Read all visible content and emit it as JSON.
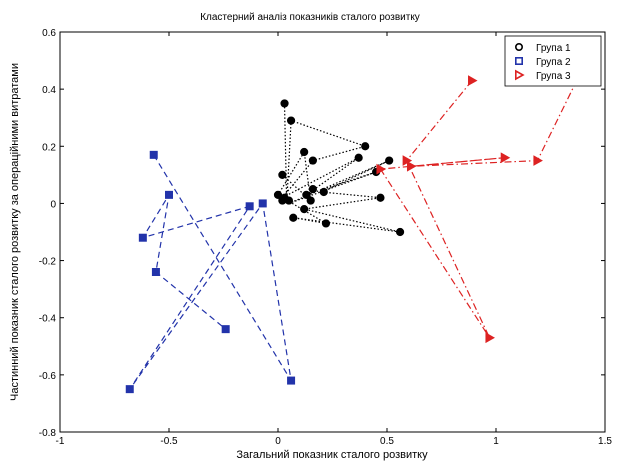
{
  "chart_data": {
    "type": "scatter",
    "title": "Кластерний аналіз показників сталого розвитку",
    "xlabel": "Загальний показник сталого розвитку",
    "ylabel": "Частинний показник сталого розвитку за операційними витратами",
    "xlim": [
      -1,
      1.5
    ],
    "ylim": [
      -0.8,
      0.6
    ],
    "x_ticks": [
      -1,
      -0.5,
      0,
      0.5,
      1,
      1.5
    ],
    "y_ticks": [
      -0.8,
      -0.6,
      -0.4,
      -0.2,
      0,
      0.2,
      0.4,
      0.6
    ],
    "x_tick_labels": [
      "-1",
      "-0.5",
      "0",
      "0.5",
      "1",
      "1.5"
    ],
    "y_tick_labels": [
      "-0.8",
      "-0.6",
      "-0.4",
      "-0.2",
      "0",
      "0.2",
      "0.4",
      "0.6"
    ],
    "grid": false,
    "legend_position": "top-right",
    "series": [
      {
        "name": "Група 1",
        "color": "#000000",
        "marker": "circle",
        "line_style": "dotted",
        "points": [
          [
            0.03,
            0.35
          ],
          [
            0.06,
            0.29
          ],
          [
            0.12,
            0.18
          ],
          [
            0.16,
            0.15
          ],
          [
            0.4,
            0.2
          ],
          [
            0.45,
            0.11
          ],
          [
            0.51,
            0.15
          ],
          [
            0.37,
            0.16
          ],
          [
            0.02,
            0.1
          ],
          [
            0.03,
            0.02
          ],
          [
            0.05,
            0.01
          ],
          [
            0.0,
            0.03
          ],
          [
            0.13,
            0.03
          ],
          [
            0.16,
            0.05
          ],
          [
            0.21,
            0.04
          ],
          [
            0.15,
            0.01
          ],
          [
            0.12,
            -0.02
          ],
          [
            0.07,
            -0.05
          ],
          [
            0.22,
            -0.07
          ],
          [
            0.47,
            0.02
          ],
          [
            0.56,
            -0.1
          ],
          [
            0.02,
            0.01
          ]
        ],
        "path": [
          [
            0.03,
            0.35
          ],
          [
            0.04,
            0.0
          ],
          [
            0.06,
            0.29
          ],
          [
            0.4,
            0.2
          ],
          [
            0.16,
            0.15
          ],
          [
            0.02,
            0.02
          ],
          [
            0.37,
            0.16
          ],
          [
            0.13,
            0.03
          ],
          [
            0.45,
            0.11
          ],
          [
            0.05,
            0.0
          ],
          [
            0.51,
            0.15
          ],
          [
            0.2,
            0.04
          ],
          [
            0.47,
            0.02
          ],
          [
            0.12,
            -0.02
          ],
          [
            0.56,
            -0.1
          ],
          [
            0.07,
            -0.05
          ],
          [
            0.22,
            -0.07
          ],
          [
            0.0,
            0.03
          ],
          [
            0.12,
            0.18
          ],
          [
            0.15,
            0.01
          ],
          [
            0.02,
            0.1
          ]
        ]
      },
      {
        "name": "Група 2",
        "color": "#2233aa",
        "marker": "square",
        "line_style": "dashed",
        "points": [
          [
            -0.57,
            0.17
          ],
          [
            -0.5,
            0.03
          ],
          [
            -0.62,
            -0.12
          ],
          [
            -0.56,
            -0.24
          ],
          [
            -0.24,
            -0.44
          ],
          [
            -0.13,
            -0.01
          ],
          [
            -0.07,
            0.0
          ],
          [
            -0.68,
            -0.65
          ],
          [
            0.06,
            -0.62
          ]
        ],
        "path": [
          [
            -0.57,
            0.17
          ],
          [
            0.06,
            -0.62
          ],
          [
            -0.07,
            0.0
          ],
          [
            -0.68,
            -0.65
          ],
          [
            -0.13,
            -0.01
          ],
          [
            -0.62,
            -0.12
          ],
          [
            -0.5,
            0.03
          ],
          [
            -0.56,
            -0.24
          ],
          [
            -0.24,
            -0.44
          ]
        ]
      },
      {
        "name": "Група 3",
        "color": "#dd2222",
        "marker": "triangle-right",
        "line_style": "dashdot",
        "points": [
          [
            0.89,
            0.43
          ],
          [
            1.37,
            0.43
          ],
          [
            0.59,
            0.15
          ],
          [
            0.61,
            0.13
          ],
          [
            1.04,
            0.16
          ],
          [
            1.19,
            0.15
          ],
          [
            0.47,
            0.12
          ],
          [
            0.97,
            -0.47
          ]
        ],
        "path": [
          [
            0.89,
            0.43
          ],
          [
            0.59,
            0.15
          ],
          [
            0.97,
            -0.47
          ],
          [
            0.47,
            0.12
          ],
          [
            1.04,
            0.16
          ],
          [
            0.61,
            0.13
          ],
          [
            1.19,
            0.15
          ],
          [
            1.37,
            0.43
          ]
        ]
      }
    ]
  }
}
